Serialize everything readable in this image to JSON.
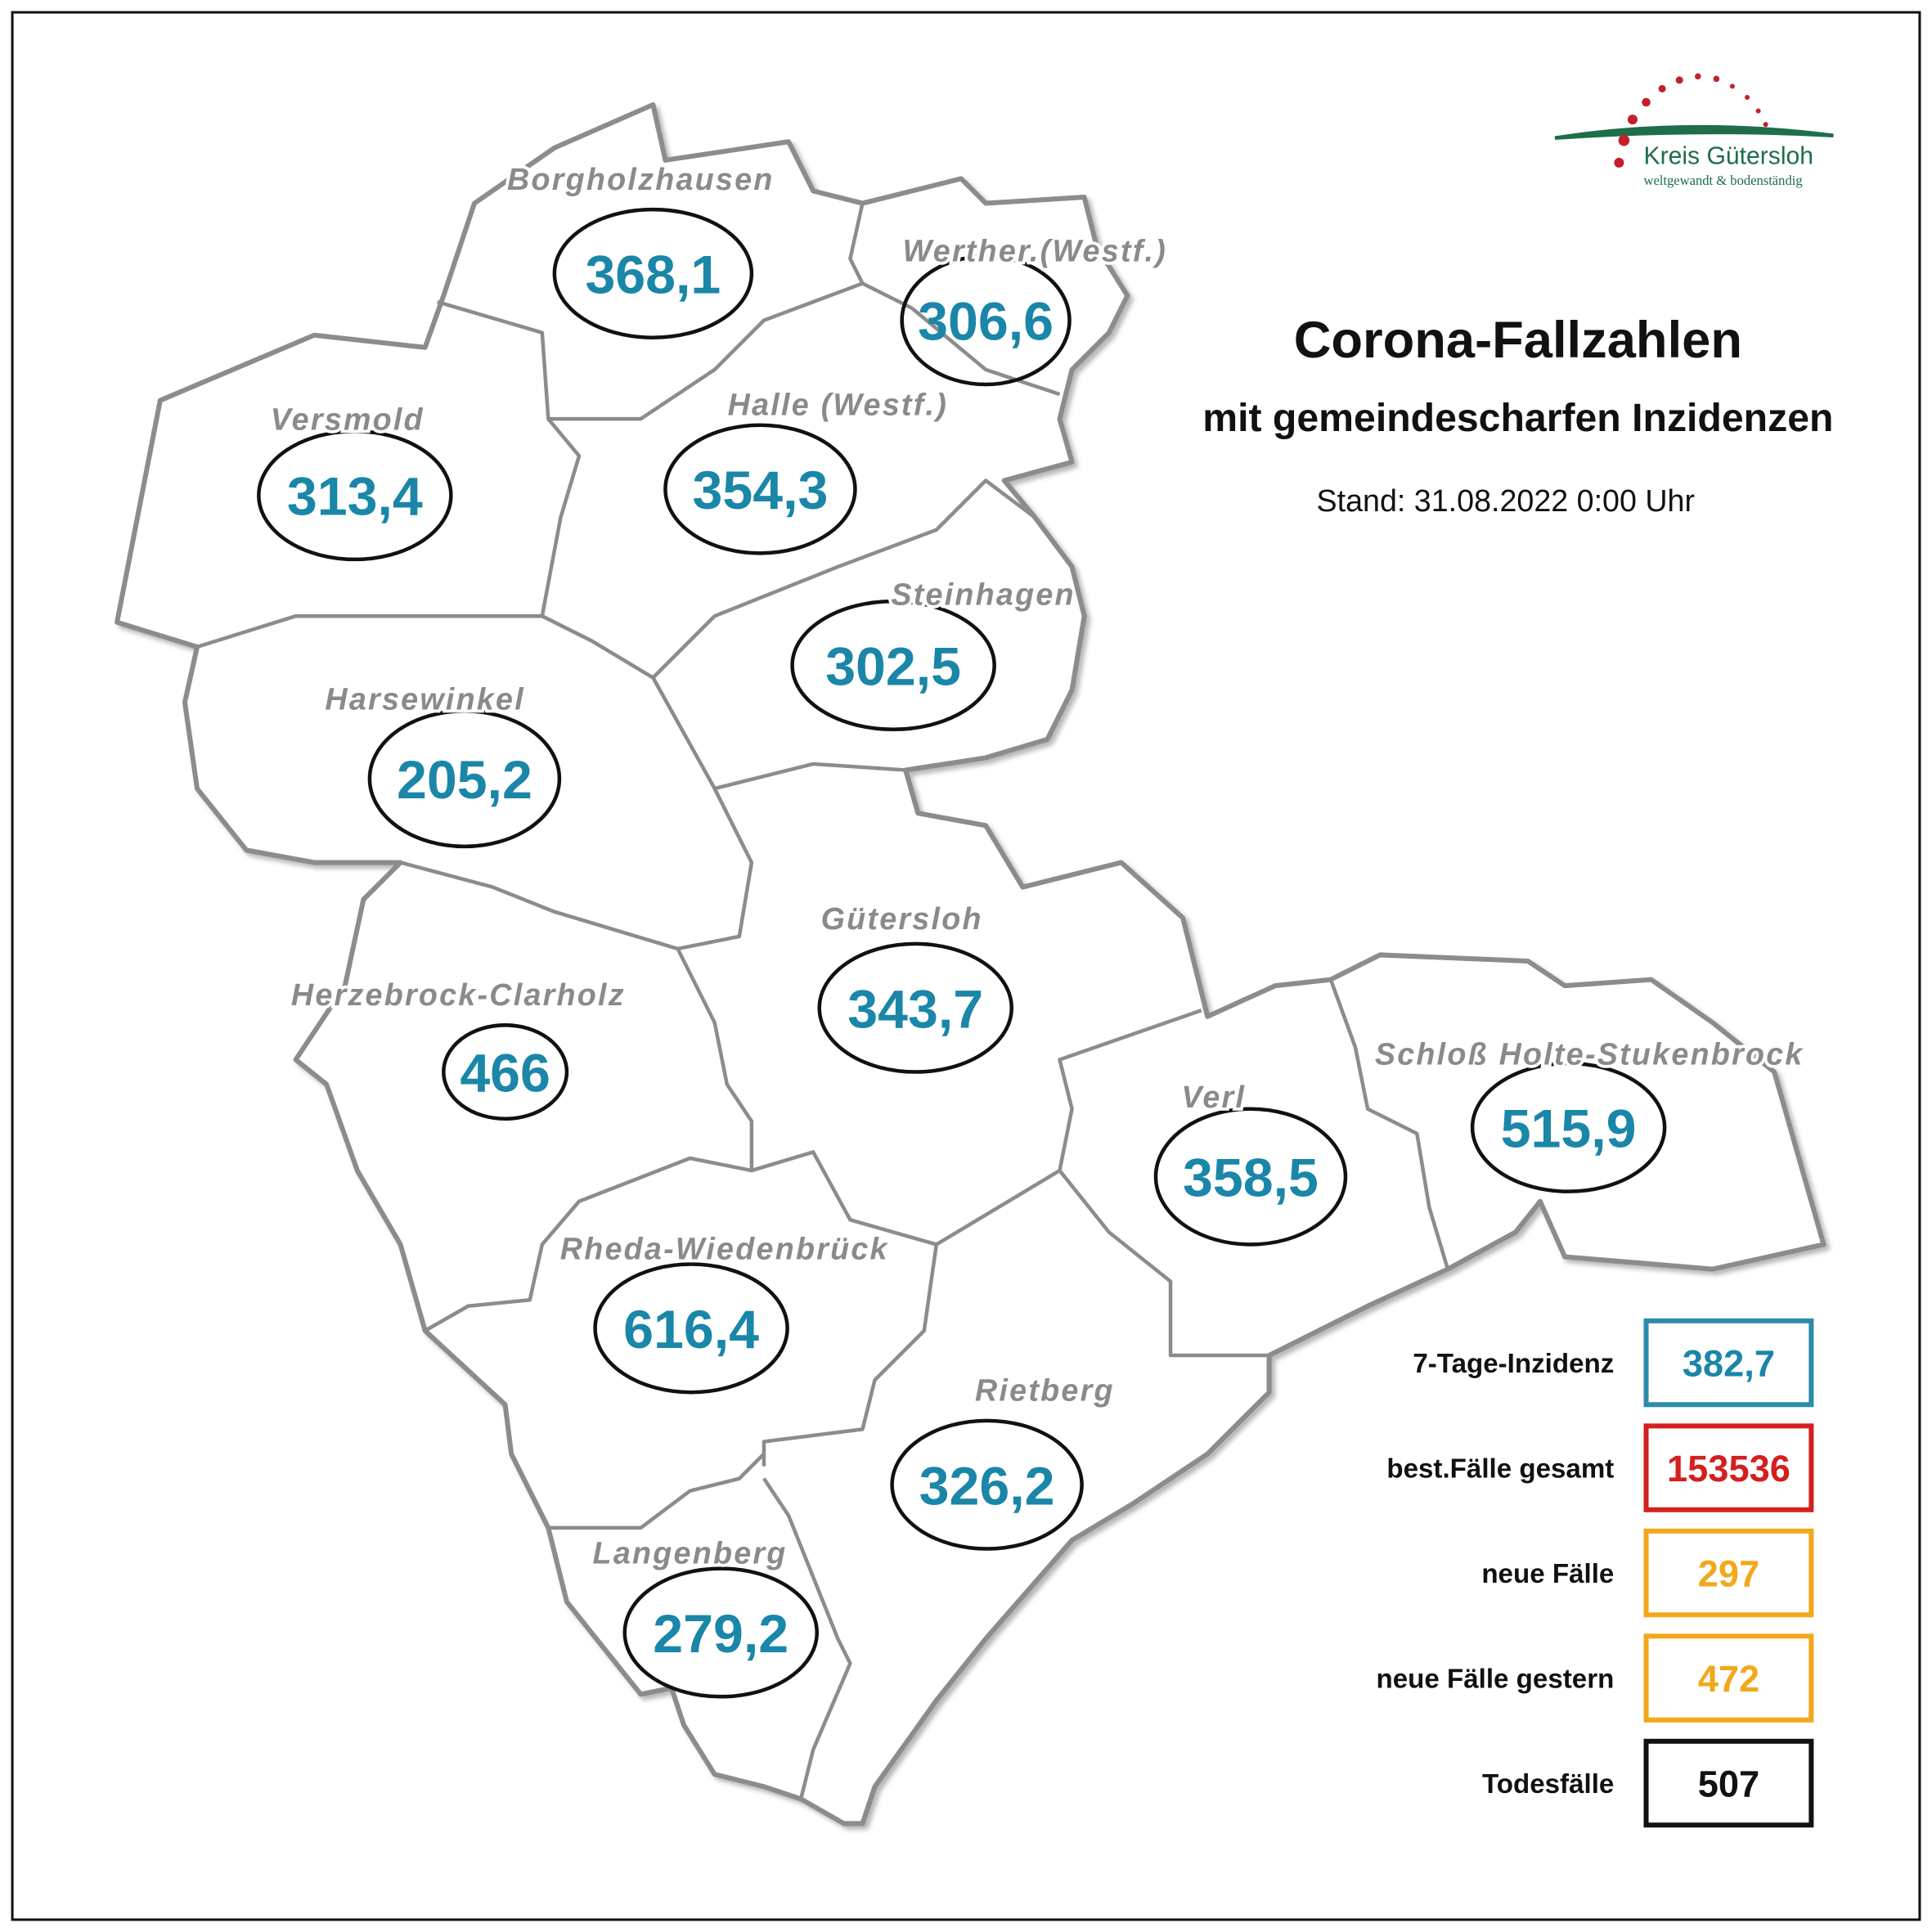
{
  "header": {
    "title": "Corona-Fallzahlen",
    "subtitle": "mit gemeindescharfen Inzidenzen",
    "stand": "Stand: 31.08.2022 0:00 Uhr"
  },
  "logo": {
    "name": "Kreis Gütersloh",
    "slogan": "weltgewandt & bodenständig"
  },
  "municipalities": [
    {
      "name": "Borgholzhausen",
      "value": "368,1"
    },
    {
      "name": "Werther.(Westf.)",
      "value": "306,6"
    },
    {
      "name": "Versmold",
      "value": "313,4"
    },
    {
      "name": "Halle (Westf.)",
      "value": "354,3"
    },
    {
      "name": "Steinhagen",
      "value": "302,5"
    },
    {
      "name": "Harsewinkel",
      "value": "205,2"
    },
    {
      "name": "Gütersloh",
      "value": "343,7"
    },
    {
      "name": "Herzebrock-Clarholz",
      "value": "466"
    },
    {
      "name": "Verl",
      "value": "358,5"
    },
    {
      "name": "Schloß Holte-Stukenbrock",
      "value": "515,9"
    },
    {
      "name": "Rheda-Wiedenbrück",
      "value": "616,4"
    },
    {
      "name": "Rietberg",
      "value": "326,2"
    },
    {
      "name": "Langenberg",
      "value": "279,2"
    }
  ],
  "summary": [
    {
      "label": "7-Tage-Inzidenz",
      "value": "382,7"
    },
    {
      "label": "best.Fälle gesamt",
      "value": "153536"
    },
    {
      "label": "neue Fälle",
      "value": "297"
    },
    {
      "label": "neue Fälle gestern",
      "value": "472"
    },
    {
      "label": "Todesfälle",
      "value": "507"
    }
  ]
}
